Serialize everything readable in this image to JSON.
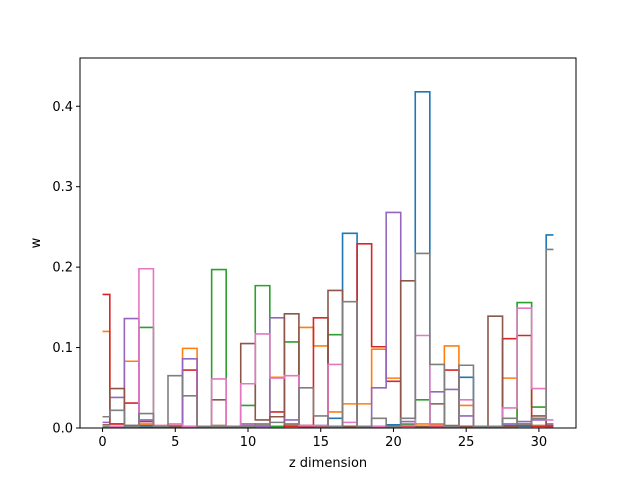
{
  "chart_data": {
    "type": "step",
    "xlabel": "z dimension",
    "ylabel": "w",
    "xlim": [
      -1.55,
      32.55
    ],
    "ylim": [
      0,
      0.46
    ],
    "x_ticks": [
      0,
      5,
      10,
      15,
      20,
      25,
      30
    ],
    "y_ticks": [
      0.0,
      0.1,
      0.2,
      0.3,
      0.4
    ],
    "y_tick_labels": [
      "0.0",
      "0.1",
      "0.2",
      "0.3",
      "0.4"
    ],
    "step_where": "mid",
    "x": [
      0,
      1,
      2,
      3,
      4,
      5,
      6,
      7,
      8,
      9,
      10,
      11,
      12,
      13,
      14,
      15,
      16,
      17,
      18,
      19,
      20,
      21,
      22,
      23,
      24,
      25,
      26,
      27,
      28,
      29,
      30,
      31
    ],
    "series": [
      {
        "color": "#1f77b4",
        "values": [
          0.002,
          0.001,
          0.003,
          0.001,
          0.002,
          0.002,
          0.002,
          0.001,
          0.003,
          0.002,
          0.002,
          0.003,
          0.002,
          0.003,
          0.002,
          0.003,
          0.012,
          0.242,
          0.002,
          0.002,
          0.004,
          0.005,
          0.418,
          0.004,
          0.002,
          0.063,
          0.001,
          0.002,
          0.003,
          0.002,
          0.003,
          0.24
        ]
      },
      {
        "color": "#ff7f0e",
        "values": [
          0.12,
          0.005,
          0.083,
          0.005,
          0.003,
          0.003,
          0.099,
          0.002,
          0.003,
          0.002,
          0.003,
          0.003,
          0.063,
          0.004,
          0.125,
          0.102,
          0.02,
          0.03,
          0.03,
          0.098,
          0.062,
          0.005,
          0.005,
          0.005,
          0.102,
          0.028,
          0.002,
          0.002,
          0.062,
          0.005,
          0.003,
          0.003
        ]
      },
      {
        "color": "#2ca02c",
        "values": [
          0.002,
          0.002,
          0.002,
          0.125,
          0.002,
          0.002,
          0.002,
          0.002,
          0.197,
          0.002,
          0.028,
          0.177,
          0.002,
          0.107,
          0.002,
          0.002,
          0.116,
          0.002,
          0.002,
          0.002,
          0.002,
          0.004,
          0.035,
          0.002,
          0.002,
          0.002,
          0.002,
          0.002,
          0.002,
          0.156,
          0.026,
          0.002
        ]
      },
      {
        "color": "#d62728",
        "values": [
          0.166,
          0.005,
          0.031,
          0.008,
          0.002,
          0.002,
          0.072,
          0.002,
          0.002,
          0.002,
          0.002,
          0.002,
          0.02,
          0.002,
          0.002,
          0.137,
          0.002,
          0.002,
          0.229,
          0.101,
          0.058,
          0.002,
          0.002,
          0.002,
          0.072,
          0.002,
          0.002,
          0.002,
          0.111,
          0.115,
          0.002,
          0.002
        ]
      },
      {
        "color": "#9467bd",
        "values": [
          0.007,
          0.038,
          0.136,
          0.01,
          0.002,
          0.002,
          0.086,
          0.002,
          0.002,
          0.002,
          0.005,
          0.002,
          0.137,
          0.01,
          0.003,
          0.002,
          0.002,
          0.002,
          0.002,
          0.05,
          0.268,
          0.008,
          0.002,
          0.045,
          0.048,
          0.015,
          0.002,
          0.002,
          0.005,
          0.008,
          0.01,
          0.005
        ]
      },
      {
        "color": "#8c564b",
        "values": [
          0.004,
          0.049,
          0.003,
          0.003,
          0.002,
          0.002,
          0.002,
          0.002,
          0.035,
          0.002,
          0.105,
          0.01,
          0.014,
          0.142,
          0.003,
          0.002,
          0.171,
          0.002,
          0.002,
          0.002,
          0.002,
          0.183,
          0.002,
          0.03,
          0.003,
          0.002,
          0.002,
          0.139,
          0.002,
          0.003,
          0.015,
          0.003
        ]
      },
      {
        "color": "#e377c2",
        "values": [
          0.003,
          0.002,
          0.002,
          0.198,
          0.003,
          0.005,
          0.002,
          0.002,
          0.061,
          0.002,
          0.055,
          0.117,
          0.062,
          0.065,
          0.003,
          0.003,
          0.079,
          0.007,
          0.002,
          0.002,
          0.002,
          0.003,
          0.115,
          0.003,
          0.002,
          0.035,
          0.002,
          0.002,
          0.025,
          0.149,
          0.049,
          0.01
        ]
      },
      {
        "color": "#7f7f7f",
        "values": [
          0.014,
          0.022,
          0.002,
          0.018,
          0.002,
          0.065,
          0.04,
          0.002,
          0.002,
          0.002,
          0.002,
          0.005,
          0.007,
          0.005,
          0.05,
          0.015,
          0.002,
          0.157,
          0.002,
          0.012,
          0.002,
          0.012,
          0.217,
          0.079,
          0.002,
          0.078,
          0.002,
          0.002,
          0.012,
          0.005,
          0.012,
          0.222
        ]
      }
    ]
  }
}
